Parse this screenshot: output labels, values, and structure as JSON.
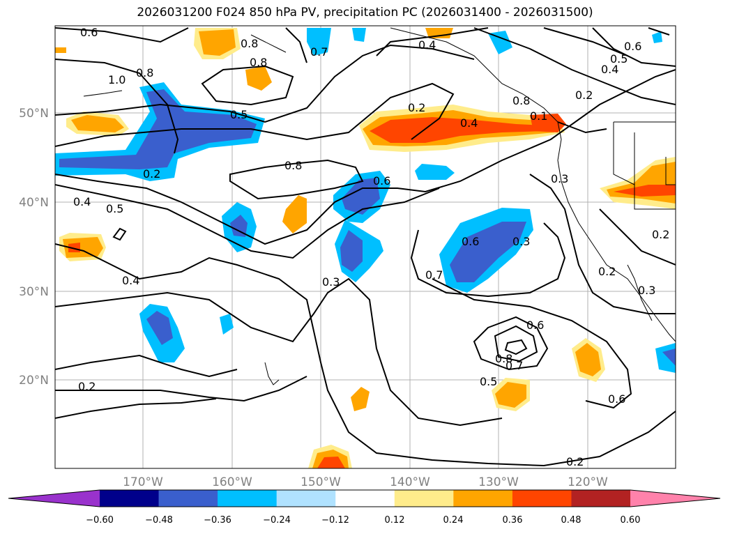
{
  "title": "2026031200 F024 850 hPa PV, precipitation PC (2026031400 - 2026031500)",
  "map": {
    "lat_labels": [
      "50°N",
      "40°N",
      "30°N",
      "20°N"
    ],
    "lon_labels": [
      "170°W",
      "160°W",
      "150°W",
      "140°W",
      "130°W",
      "120°W"
    ],
    "contour_labels": [
      "0.6",
      "0.8",
      "1.0",
      "0.8",
      "0.5",
      "0.8",
      "0.7",
      "0.4",
      "0.8",
      "0.6",
      "0.5",
      "0.4",
      "0.2",
      "0.2",
      "0.4",
      "0.8",
      "0.6",
      "0.3",
      "0.4",
      "0.5",
      "0.4",
      "0.7",
      "0.6",
      "0.3",
      "0.3",
      "0.2",
      "0.2",
      "0.2",
      "0.6",
      "0.8",
      "0.7",
      "0.5",
      "0.6",
      "0.2",
      "0.2",
      "0.1",
      "0.3"
    ]
  },
  "colorbar": {
    "colors": [
      "#9932CC",
      "#00008B",
      "#3A5FCD",
      "#00BFFF",
      "#B0E2FF",
      "#FFFFFF",
      "#FFEC8B",
      "#FFA500",
      "#FF4500",
      "#B22222",
      "#FF82AB"
    ],
    "tick_labels": [
      "−0.60",
      "−0.48",
      "−0.36",
      "−0.24",
      "−0.12",
      "0.12",
      "0.24",
      "0.36",
      "0.48",
      "0.60"
    ]
  }
}
